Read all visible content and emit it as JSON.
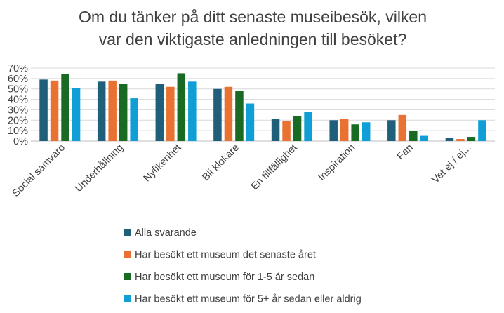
{
  "chart_data": {
    "type": "bar",
    "title": [
      "Om du tänker på ditt senaste museibesök, vilken",
      "var den viktigaste anledningen till besöket?"
    ],
    "categories": [
      "Social samvaro",
      "Underhållning",
      "Nyfikenhet",
      "Bli klokare",
      "En tillfällighet",
      "Inspiration",
      "Fan",
      "Vet ej / ej..."
    ],
    "series": [
      {
        "name": "Alla svarande",
        "color": "#1f5f7a",
        "values": [
          59,
          57,
          55,
          50,
          21,
          20,
          20,
          3
        ]
      },
      {
        "name": "Har besökt ett museum det senaste året",
        "color": "#e97132",
        "values": [
          58,
          58,
          52,
          52,
          19,
          21,
          25,
          2
        ]
      },
      {
        "name": "Har besökt ett museum för 1-5 år sedan",
        "color": "#196b24",
        "values": [
          64,
          55,
          65,
          48,
          24,
          16,
          10,
          4
        ]
      },
      {
        "name": "Har besökt ett museum för 5+ år sedan eller aldrig",
        "color": "#0f9ed5",
        "values": [
          51,
          41,
          57,
          36,
          28,
          18,
          5,
          20
        ]
      }
    ],
    "yticks": [
      "0%",
      "10%",
      "20%",
      "30%",
      "40%",
      "50%",
      "60%",
      "70%"
    ],
    "ylim": [
      0,
      70
    ],
    "grid": true,
    "legend_position": "bottom"
  }
}
